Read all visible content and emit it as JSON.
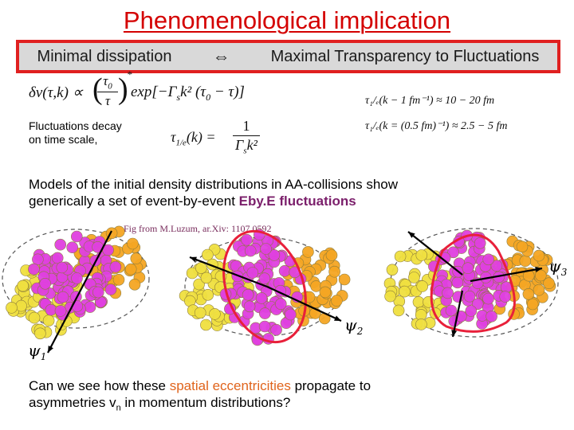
{
  "slide": {
    "title": "Phenomenological implication",
    "banner": {
      "left": "Minimal dissipation",
      "arrow": "⇔",
      "right": "Maximal Transparency to Fluctuations"
    },
    "fluct_label_line1": "Fluctuations decay",
    "fluct_label_line2": "on time scale,",
    "eq1": {
      "lhs": "δv(τ,k) ∝",
      "frac_num": "τ",
      "frac_den": "τ",
      "num_sub": "0",
      "exponent": "*",
      "rhs": "exp[−Γ",
      "rhs_sub": "s",
      "rhs_tail": "k² (τ",
      "rhs_tail_sub": "0",
      "rhs_end": " − τ)]"
    },
    "eq2": {
      "lhs": "τ",
      "lhs_sub": "1/e",
      "lhs_tail": "(k) =",
      "num": "1",
      "den": "Γ",
      "den_sub": "s",
      "den_tail": "k²"
    },
    "eq3": "τ₁/ₑ(k − 1 fm⁻¹) ≈ 10 − 20 fm",
    "eq4": "τ₁/ₑ(k = (0.5 fm)⁻¹) ≈ 2.5 − 5 fm",
    "para1_line1": "Models of the initial density distributions in AA-collisions show",
    "para1_line2_a": "generically a set of event-by-event ",
    "para1_line2_b": "Eby.E fluctuations",
    "caption": "Fig from M.Luzum, ar.Xiv: 1107.0592",
    "para2_line1_a": "Can we see how these ",
    "para2_line1_b": "spatial eccentricities",
    "para2_line1_c": " propagate to",
    "para2_line2_a": "asymmetries v",
    "para2_line2_sub": "n",
    "para2_line2_b": " in momentum distributions?"
  },
  "figure": {
    "psi1_label": "ψ",
    "psi1_sub": "1",
    "psi2_label": "ψ",
    "psi2_sub": "2",
    "psi3_label": "ψ",
    "psi3_sub": "3"
  },
  "colors": {
    "title": "#d40000",
    "banner_border": "#e02020",
    "banner_bg": "#d9d9d9",
    "purple": "#7b1f6b",
    "orange": "#e0641c",
    "magenta": "#e040e0",
    "yellow": "#f0e040",
    "orange_nucleon": "#f5a623",
    "outline": "#e8203a"
  }
}
